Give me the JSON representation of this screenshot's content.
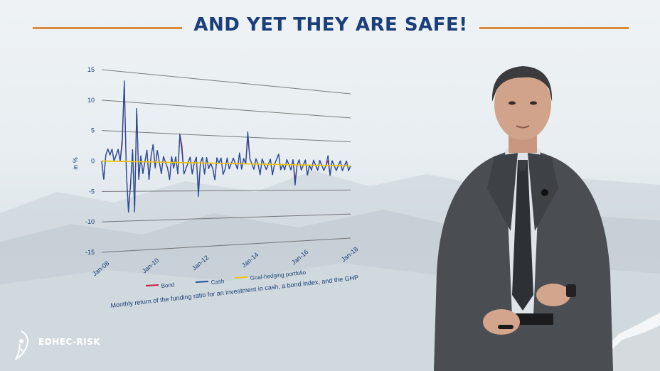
{
  "slide": {
    "title": "AND YET THEY ARE SAFE!",
    "caption": "Monthly return of the funding ratio for an investment in cash, a bond index, and the GHP",
    "logo_text": "EDHEC-RISK"
  },
  "colors": {
    "title": "#1b3f7a",
    "accent_line": "#d98a3d",
    "bond": "#c41d4a",
    "cash": "#1f4e9c",
    "ghp": "#f2c200",
    "grid": "#555555"
  },
  "chart_data": {
    "type": "line",
    "ylabel": "in %",
    "ylim": [
      -15,
      15
    ],
    "yticks": [
      15,
      10,
      5,
      0,
      -5,
      -10,
      -15
    ],
    "xticks": [
      "Jan-08",
      "Jan-10",
      "Jan-12",
      "Jan-14",
      "Jan-16",
      "Jan-18"
    ],
    "x_start": "Jan-08",
    "x_end": "Jan-18",
    "grid": true,
    "legend": "bottom",
    "series": [
      {
        "name": "Bond",
        "values": [
          0,
          -3,
          1,
          2,
          1,
          2,
          0,
          1,
          2,
          0,
          3,
          13,
          -2,
          -8,
          -4,
          2,
          -8,
          9,
          -3,
          1,
          -2,
          0,
          2,
          -3,
          1,
          3,
          -1,
          2,
          0,
          -2,
          1,
          0,
          -1,
          -3,
          1,
          -1,
          1,
          -2,
          5,
          3,
          -2,
          -1,
          0,
          1,
          -2,
          0,
          1,
          -5,
          0,
          1,
          -2,
          1,
          -1,
          0,
          -1,
          -3,
          1,
          0,
          1,
          -2,
          -1,
          1,
          -1,
          0,
          1,
          0,
          -1,
          2,
          -1,
          1,
          0,
          5,
          1,
          0,
          -1,
          1,
          0,
          -2,
          1,
          0,
          -1,
          0,
          1,
          -2,
          0,
          1,
          2,
          -1,
          0,
          -1,
          1,
          0,
          -1,
          1,
          -3,
          0,
          1,
          -1,
          0,
          1,
          -2,
          0,
          -1,
          1,
          0,
          -1,
          1,
          0,
          -1,
          0,
          1,
          -2,
          1,
          0,
          -1,
          0,
          1,
          -1,
          0,
          1,
          -1,
          0
        ]
      },
      {
        "name": "Cash",
        "values": [
          0,
          -3,
          1,
          2,
          1,
          2,
          0,
          1,
          2,
          0,
          4,
          13.5,
          -2,
          -8.5,
          -4,
          2,
          -8.5,
          9,
          -3,
          1,
          -2,
          0,
          2,
          -3,
          1,
          3,
          -1,
          2,
          0,
          -2,
          1,
          0,
          -1,
          -3,
          1,
          -1,
          1,
          -2,
          5,
          2,
          -2,
          -1,
          0,
          1,
          -2,
          0,
          1,
          -6,
          0,
          1,
          -2,
          1,
          -1,
          0,
          -1,
          -3,
          1,
          0,
          1,
          -2,
          -1,
          1,
          -1,
          0,
          1,
          0,
          -1,
          2,
          -1,
          1,
          0,
          6,
          1,
          0,
          -1,
          1,
          0,
          -2,
          1,
          0,
          -1,
          0,
          1,
          -2,
          0,
          1,
          2,
          -1,
          0,
          -1,
          1,
          0,
          -1,
          1,
          -4,
          0,
          1,
          -1,
          0,
          1,
          -2,
          0,
          -1,
          1,
          0,
          -1,
          1,
          0,
          -1,
          0,
          2,
          -2,
          1,
          0,
          -1,
          0,
          1,
          -1,
          0,
          1,
          -1,
          0
        ]
      },
      {
        "name": "Goal-hedging portfolio",
        "values": [
          0,
          0,
          0,
          0,
          0,
          0,
          0,
          0,
          0,
          0,
          0,
          0,
          0,
          0,
          0,
          0,
          0,
          0,
          0,
          0,
          0,
          0,
          0,
          0,
          0,
          0,
          0,
          0,
          0,
          0,
          0,
          0,
          0,
          0,
          0,
          0,
          0,
          0,
          0,
          0,
          0,
          0,
          0,
          0,
          0,
          0,
          0,
          0,
          0,
          0,
          0,
          0,
          0,
          0,
          0,
          0,
          0,
          0,
          0,
          0,
          0,
          0,
          0,
          0,
          0,
          0,
          0,
          0,
          0,
          0,
          0,
          0,
          0,
          0,
          0,
          0,
          0,
          0,
          0,
          0,
          0,
          0,
          0,
          0,
          0,
          0,
          0,
          0,
          0,
          0,
          0,
          0,
          0,
          0,
          0,
          0,
          0,
          0,
          0,
          0,
          0,
          0,
          0,
          0,
          0,
          0,
          0,
          0,
          0,
          0,
          0,
          0,
          0,
          0,
          0,
          0,
          0,
          0,
          0,
          0,
          0
        ]
      }
    ]
  }
}
